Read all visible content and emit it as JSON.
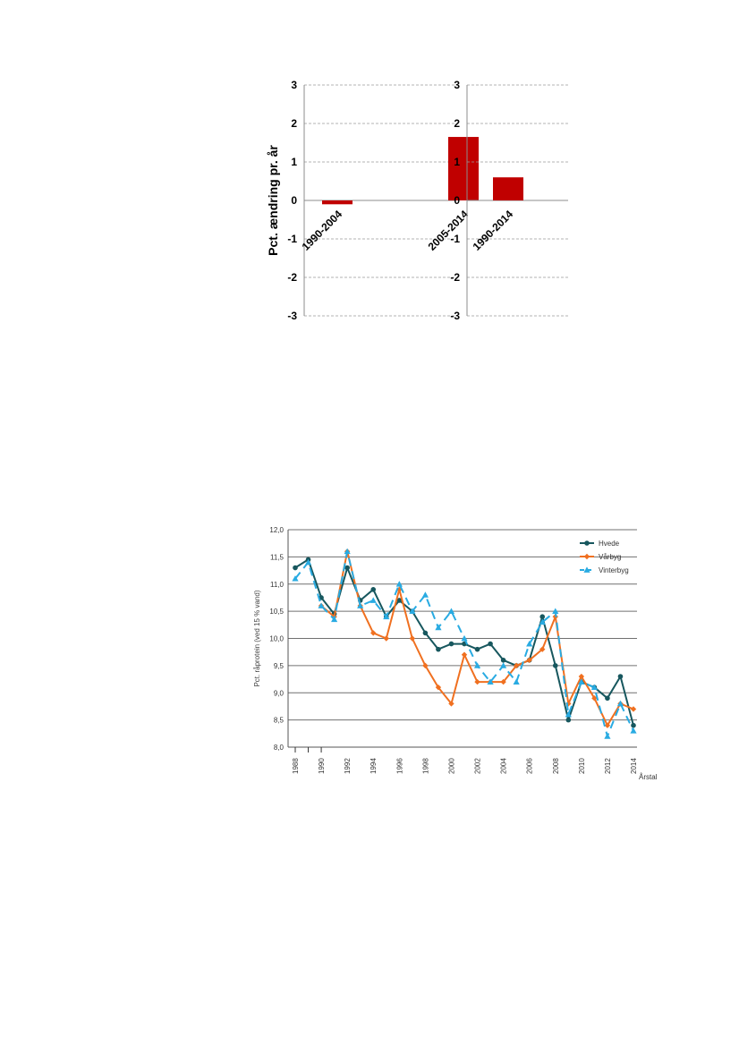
{
  "chart_data": [
    {
      "type": "bar",
      "ylabel": "Pct. ændring pr. år",
      "ylim": [
        -3,
        3
      ],
      "yticks": [
        "-3",
        "-2",
        "-1",
        "0",
        "1",
        "2",
        "3"
      ],
      "grid": true,
      "panels": [
        {
          "categories": [
            "1990-2004",
            "2005-2014"
          ],
          "values": [
            -0.1,
            1.65
          ],
          "color": "#c00000"
        },
        {
          "categories": [
            "1990-2014"
          ],
          "values": [
            0.6
          ],
          "color": "#c00000"
        }
      ]
    },
    {
      "type": "line",
      "ylabel": "Pct. råprotein (ved 15 % vand)",
      "xlabel": "Årstal",
      "ylim": [
        8.0,
        12.0
      ],
      "yticks": [
        "8,0",
        "8,5",
        "9,0",
        "9,5",
        "10,0",
        "10,5",
        "11,0",
        "11,5",
        "12,0"
      ],
      "x": [
        1988,
        1989,
        1990,
        1991,
        1992,
        1993,
        1994,
        1995,
        1996,
        1997,
        1998,
        1999,
        2000,
        2001,
        2002,
        2003,
        2004,
        2005,
        2006,
        2007,
        2008,
        2009,
        2010,
        2011,
        2012,
        2013,
        2014
      ],
      "xticks": [
        "1988",
        "1990",
        "1992",
        "1994",
        "1996",
        "1998",
        "2000",
        "2002",
        "2004",
        "2006",
        "2008",
        "2010",
        "2012",
        "2014"
      ],
      "grid": true,
      "legend_position": "top-right",
      "series": [
        {
          "name": "Hvede",
          "color": "#17575e",
          "marker": "circle",
          "dash": false,
          "values": [
            11.3,
            11.45,
            10.75,
            10.45,
            11.3,
            10.7,
            10.9,
            10.4,
            10.7,
            10.5,
            10.1,
            9.8,
            9.9,
            9.9,
            9.8,
            9.9,
            9.6,
            9.5,
            9.6,
            10.4,
            9.5,
            8.5,
            9.2,
            9.1,
            8.9,
            9.3,
            8.4
          ]
        },
        {
          "name": "Vårbyg",
          "color": "#f07020",
          "marker": "diamond",
          "dash": false,
          "values": [
            null,
            null,
            10.6,
            10.4,
            11.6,
            10.6,
            10.1,
            10.0,
            10.9,
            10.0,
            9.5,
            9.1,
            8.8,
            9.7,
            9.2,
            9.2,
            9.2,
            9.5,
            9.6,
            9.8,
            10.4,
            8.8,
            9.3,
            8.9,
            8.4,
            8.8,
            8.7
          ]
        },
        {
          "name": "Vinterbyg",
          "color": "#29abe2",
          "marker": "triangle",
          "dash": true,
          "values": [
            11.1,
            11.4,
            10.6,
            10.35,
            11.6,
            10.6,
            10.7,
            10.4,
            11.0,
            10.5,
            10.8,
            10.2,
            10.5,
            10.0,
            9.5,
            9.2,
            9.5,
            9.2,
            9.9,
            10.3,
            10.5,
            8.6,
            9.2,
            9.1,
            8.2,
            8.8,
            8.3
          ]
        }
      ]
    }
  ]
}
